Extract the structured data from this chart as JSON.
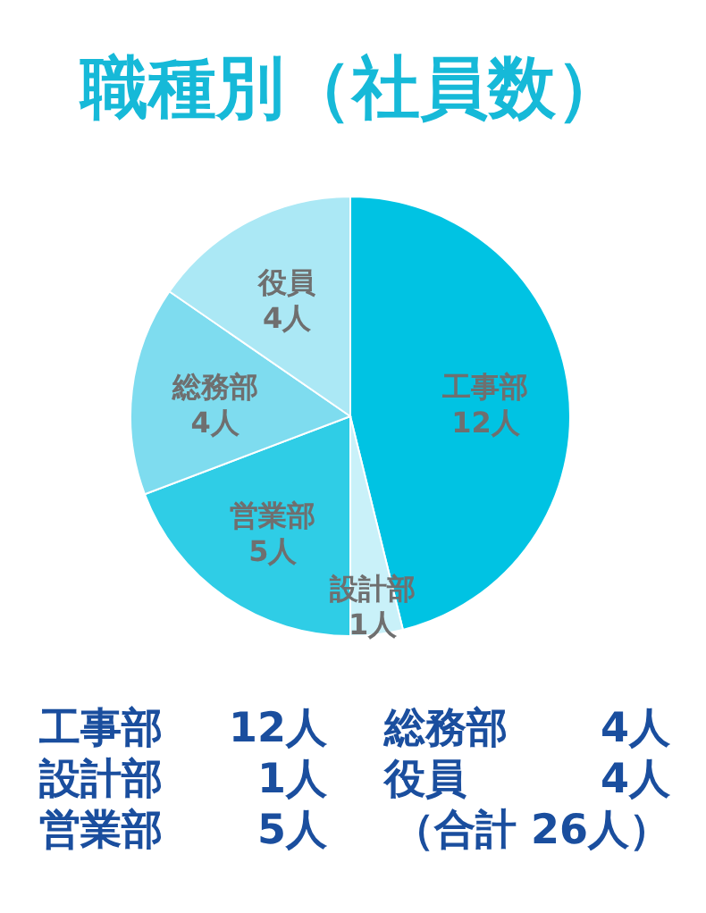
{
  "chart_data": {
    "type": "pie",
    "title": "職種別（社員数）",
    "categories": [
      "工事部",
      "設計部",
      "営業部",
      "総務部",
      "役員"
    ],
    "values": [
      12,
      1,
      5,
      4,
      4
    ],
    "value_labels": [
      "12人",
      "1人",
      "5人",
      "4人",
      "4人"
    ],
    "colors": [
      "#00c3e3",
      "#c9f1f9",
      "#2fcde6",
      "#7edcef",
      "#abe8f5"
    ],
    "annotations": [
      "（合計 26人）"
    ]
  }
}
